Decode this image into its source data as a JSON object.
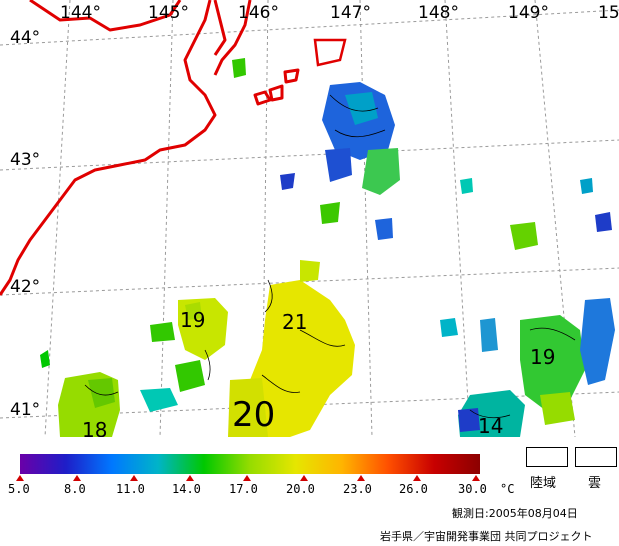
{
  "map": {
    "longitude_labels": [
      "144°",
      "145°",
      "146°",
      "147°",
      "148°",
      "149°",
      "15"
    ],
    "latitude_labels": [
      "44°",
      "43°",
      "42°",
      "41°"
    ],
    "isotherm_labels": [
      "19",
      "21",
      "20",
      "18",
      "19",
      "14"
    ],
    "coastline_color": "#e00000",
    "grid_color": "#9a9a9a"
  },
  "legend": {
    "tick_labels": [
      "5.0",
      "8.0",
      "11.0",
      "14.0",
      "17.0",
      "20.0",
      "23.0",
      "26.0",
      "30.0"
    ],
    "unit": "°C",
    "land_label": "陸域",
    "cloud_label": "雲",
    "colors": [
      "#6a00a8",
      "#1e1ec8",
      "#0078ff",
      "#00b4c8",
      "#00c800",
      "#96dc00",
      "#e6e600",
      "#ffb400",
      "#ff5000",
      "#c80000",
      "#8c0000"
    ]
  },
  "observation_date": "観測日:2005年08月04日",
  "credit": "岩手県／宇宙開発事業団 共同プロジェクト"
}
